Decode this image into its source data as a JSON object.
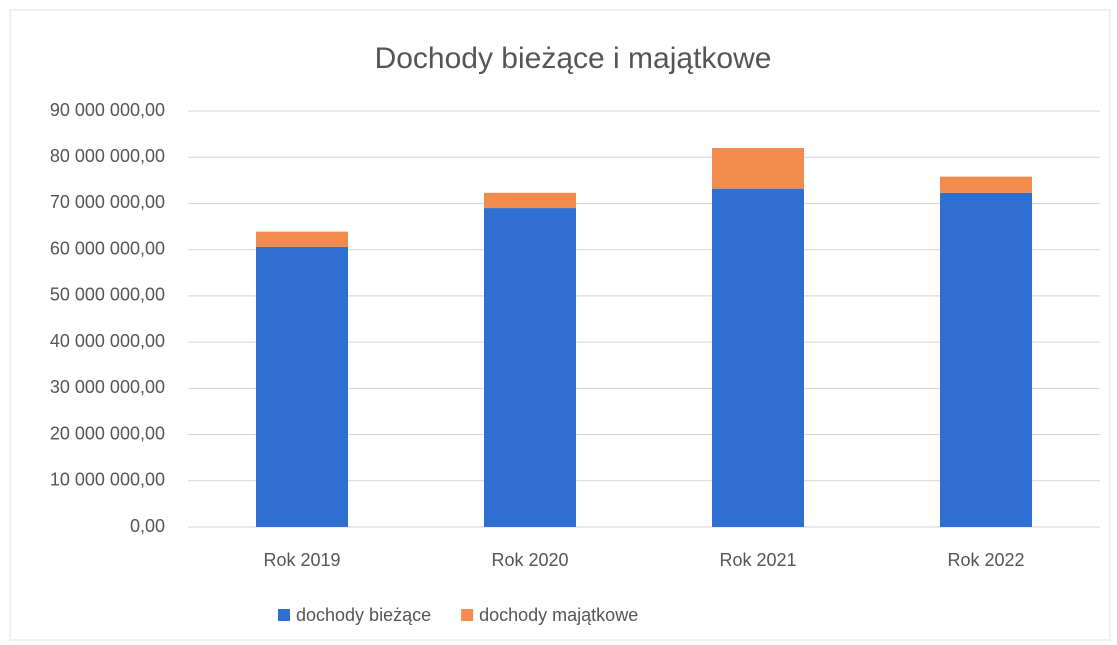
{
  "chart_data": {
    "type": "stacked_bar",
    "title": "Dochody bieżące i majątkowe",
    "categories": [
      "Rok 2019",
      "Rok 2020",
      "Rok 2021",
      "Rok 2022"
    ],
    "series": [
      {
        "name": "dochody bieżące",
        "color": "#2f6fd1",
        "values": [
          60600000,
          69000000,
          73200000,
          72300000
        ]
      },
      {
        "name": "dochody majątkowe",
        "color": "#f28c4e",
        "values": [
          3300000,
          3300000,
          8800000,
          3500000
        ]
      }
    ],
    "ylim": [
      0,
      90000000
    ],
    "yticks": [
      {
        "value": 0,
        "label": "0,00"
      },
      {
        "value": 10000000,
        "label": "10 000 000,00"
      },
      {
        "value": 20000000,
        "label": "20 000 000,00"
      },
      {
        "value": 30000000,
        "label": "30 000 000,00"
      },
      {
        "value": 40000000,
        "label": "40 000 000,00"
      },
      {
        "value": 50000000,
        "label": "50 000 000,00"
      },
      {
        "value": 60000000,
        "label": "60 000 000,00"
      },
      {
        "value": 70000000,
        "label": "70 000 000,00"
      },
      {
        "value": 80000000,
        "label": "80 000 000,00"
      },
      {
        "value": 90000000,
        "label": "90 000 000,00"
      }
    ],
    "grid": true,
    "legend": "bottom"
  }
}
